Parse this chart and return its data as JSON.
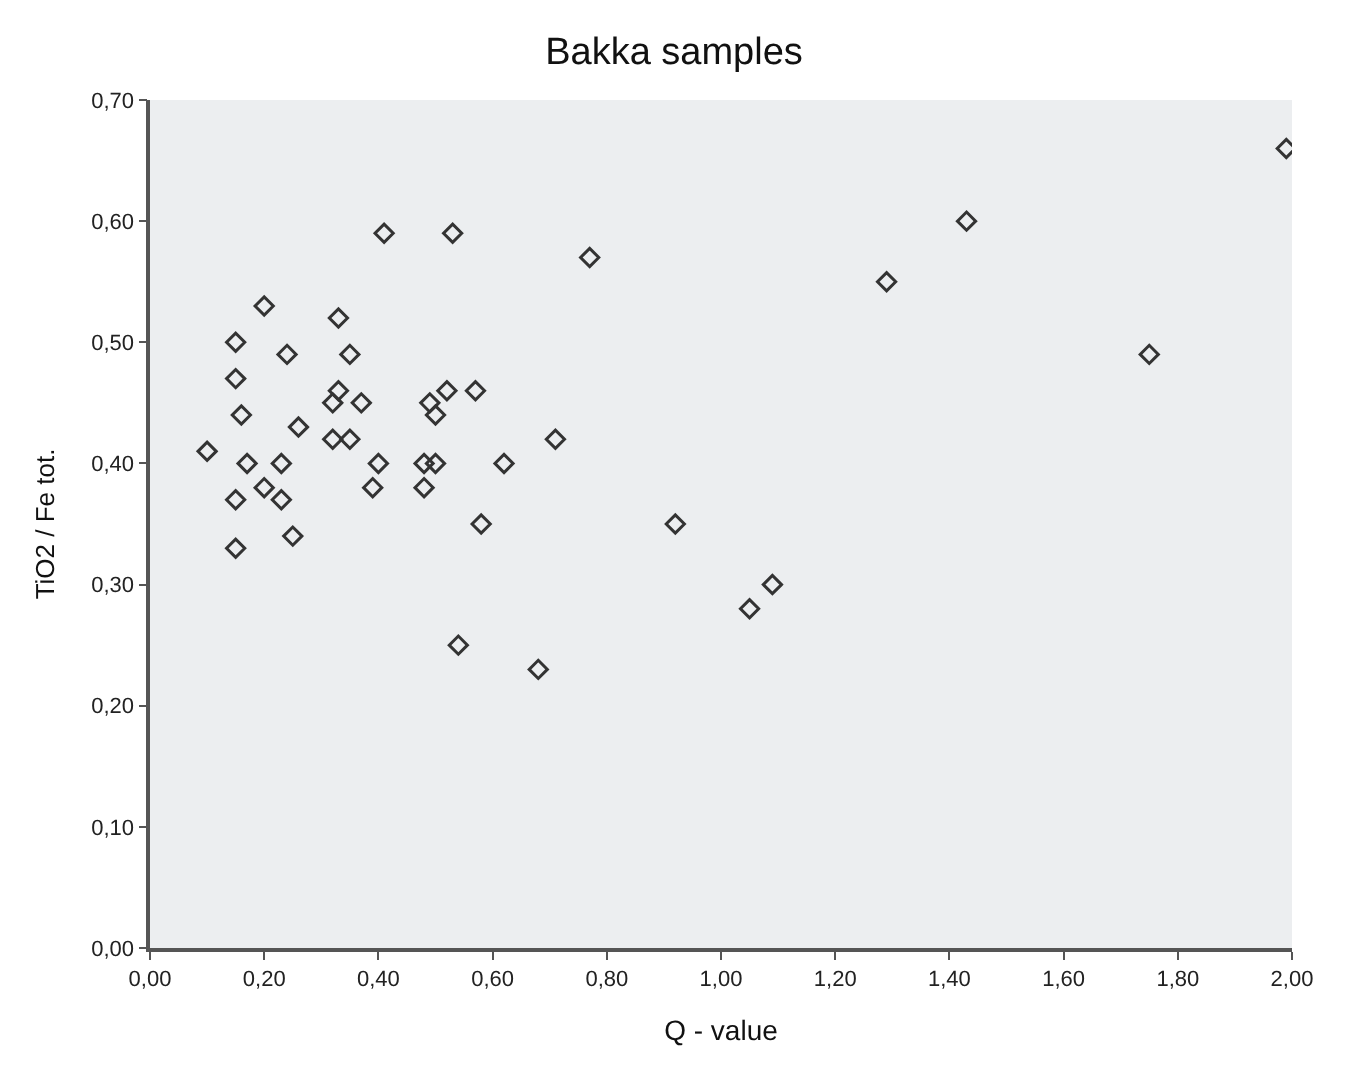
{
  "chart_data": {
    "type": "scatter",
    "title": "Bakka samples",
    "xlabel": "Q - value",
    "ylabel": "TiO2 / Fe tot.",
    "x": [
      0.1,
      0.15,
      0.15,
      0.16,
      0.15,
      0.15,
      0.17,
      0.2,
      0.2,
      0.23,
      0.23,
      0.24,
      0.25,
      0.26,
      0.32,
      0.32,
      0.33,
      0.33,
      0.35,
      0.35,
      0.37,
      0.41,
      0.4,
      0.39,
      0.49,
      0.5,
      0.48,
      0.5,
      0.48,
      0.52,
      0.53,
      0.57,
      0.54,
      0.58,
      0.62,
      0.68,
      0.71,
      0.77,
      0.92,
      1.05,
      1.09,
      1.29,
      1.43,
      1.75,
      1.99
    ],
    "values": [
      0.41,
      0.5,
      0.47,
      0.44,
      0.37,
      0.33,
      0.4,
      0.53,
      0.38,
      0.4,
      0.37,
      0.49,
      0.34,
      0.43,
      0.42,
      0.45,
      0.46,
      0.52,
      0.49,
      0.42,
      0.45,
      0.59,
      0.4,
      0.38,
      0.45,
      0.44,
      0.4,
      0.4,
      0.38,
      0.46,
      0.59,
      0.46,
      0.25,
      0.35,
      0.4,
      0.23,
      0.42,
      0.57,
      0.35,
      0.28,
      0.3,
      0.55,
      0.6,
      0.49,
      0.66
    ],
    "color": "#333333",
    "marker": "diamond",
    "grid": false,
    "legend": false,
    "xlim": [
      0,
      2
    ],
    "ylim": [
      0,
      0.7
    ],
    "xticks": [
      {
        "value": 0,
        "label": "0,00"
      },
      {
        "value": 0.2,
        "label": "0,20"
      },
      {
        "value": 0.4,
        "label": "0,40"
      },
      {
        "value": 0.6,
        "label": "0,60"
      },
      {
        "value": 0.8,
        "label": "0,80"
      },
      {
        "value": 1.0,
        "label": "1,00"
      },
      {
        "value": 1.2,
        "label": "1,20"
      },
      {
        "value": 1.4,
        "label": "1,40"
      },
      {
        "value": 1.6,
        "label": "1,60"
      },
      {
        "value": 1.8,
        "label": "1,80"
      },
      {
        "value": 2.0,
        "label": "2,00"
      }
    ],
    "yticks": [
      {
        "value": 0,
        "label": "0,00"
      },
      {
        "value": 0.1,
        "label": "0,10"
      },
      {
        "value": 0.2,
        "label": "0,20"
      },
      {
        "value": 0.3,
        "label": "0,30"
      },
      {
        "value": 0.4,
        "label": "0,40"
      },
      {
        "value": 0.5,
        "label": "0,50"
      },
      {
        "value": 0.6,
        "label": "0,60"
      },
      {
        "value": 0.7,
        "label": "0,70"
      }
    ]
  }
}
